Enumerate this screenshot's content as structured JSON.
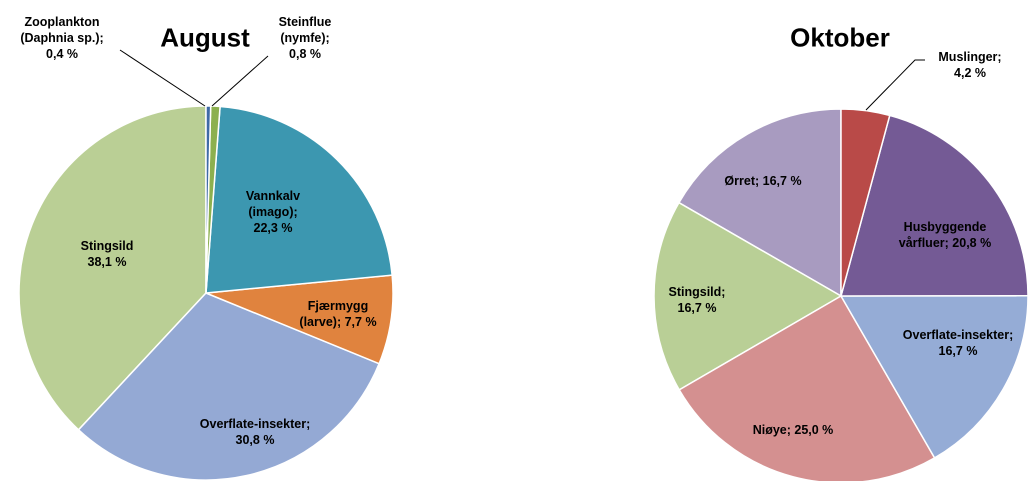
{
  "chart_data": [
    {
      "type": "pie",
      "title": "August",
      "categories": [
        "Zooplankton (Daphnia sp.);",
        "Steinflue (nymfe);",
        "Vannkalv (imago);",
        "Fjærmygg (larve);",
        "Overflate-insekter;",
        "Stingsild"
      ],
      "values": [
        0.4,
        0.8,
        22.3,
        7.7,
        30.8,
        38.1
      ],
      "value_labels": [
        "0,4 %",
        "0,8 %",
        "22,3 %",
        "7,7 %",
        "30,8 %",
        "38,1 %"
      ],
      "colors": [
        "#3f6aa6",
        "#8cb04f",
        "#3c97b0",
        "#e0833e",
        "#94a9d4",
        "#bacf95"
      ]
    },
    {
      "type": "pie",
      "title": "Oktober",
      "categories": [
        "Muslinger;",
        "Husbyggende vårfluer;",
        "Overflate-insekter;",
        "Niøye;",
        "Stingsild;",
        "Ørret;"
      ],
      "values": [
        4.2,
        20.8,
        16.7,
        25.0,
        16.7,
        16.7
      ],
      "value_labels": [
        "4,2 %",
        "20,8 %",
        "16,7 %",
        "25,0 %",
        "16,7 %",
        "16,7 %"
      ],
      "colors": [
        "#b94a48",
        "#745a95",
        "#95acd6",
        "#d49090",
        "#b9cf96",
        "#a89bc0"
      ]
    }
  ]
}
